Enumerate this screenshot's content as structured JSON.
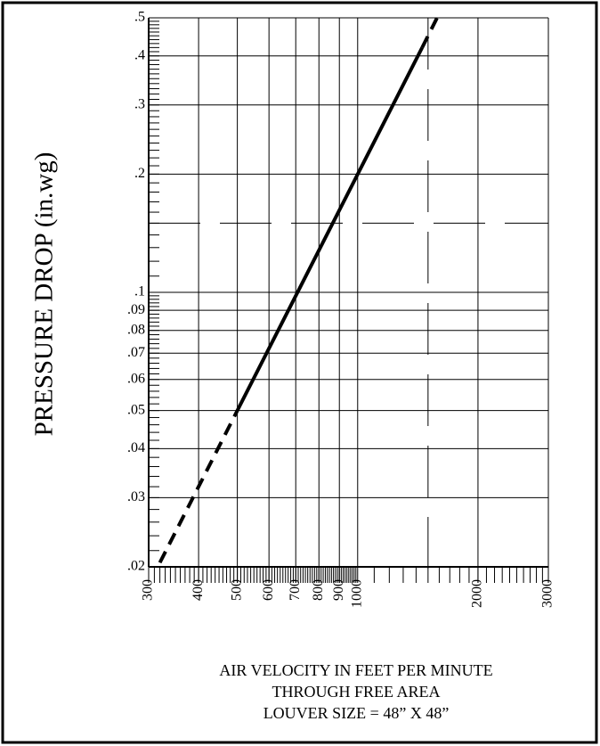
{
  "chart_data": {
    "type": "line",
    "y_label": "PRESSURE DROP (in.wg)",
    "x_label_lines": [
      "AIR VELOCITY IN FEET PER MINUTE",
      "THROUGH FREE AREA",
      "LOUVER SIZE = 48” X 48”"
    ],
    "log_x": true,
    "log_y": true,
    "grid": true,
    "xlim": [
      300,
      3000
    ],
    "ylim": [
      0.02,
      0.5
    ],
    "xticks": [
      300,
      400,
      500,
      600,
      700,
      800,
      900,
      1000,
      2000,
      3000
    ],
    "yticks": [
      {
        "value": 0.5,
        "label": ".5"
      },
      {
        "value": 0.4,
        "label": ".4"
      },
      {
        "value": 0.3,
        "label": ".3"
      },
      {
        "value": 0.2,
        "label": ".2"
      },
      {
        "value": 0.1,
        "label": ".1"
      },
      {
        "value": 0.09,
        "label": ".09"
      },
      {
        "value": 0.08,
        "label": ".08"
      },
      {
        "value": 0.07,
        "label": ".07"
      },
      {
        "value": 0.06,
        "label": ".06"
      },
      {
        "value": 0.05,
        "label": ".05"
      },
      {
        "value": 0.04,
        "label": ".04"
      },
      {
        "value": 0.03,
        "label": ".03"
      },
      {
        "value": 0.02,
        "label": ".02"
      }
    ],
    "dashed_grid": {
      "x": [
        1500
      ],
      "y": [
        0.15
      ]
    },
    "x_minor": [
      {
        "from": 300,
        "to": 1000,
        "step": 10
      },
      {
        "from": 1000,
        "to": 3000,
        "step": 100
      }
    ],
    "y_minor": [
      {
        "from": 0.02,
        "to": 0.1,
        "step": 0.002
      },
      {
        "from": 0.1,
        "to": 0.5,
        "step": 0.01
      }
    ],
    "series": [
      {
        "color": "#000000",
        "dashed": true,
        "x": [
          320,
          500
        ],
        "values": [
          0.0205,
          0.05
        ]
      },
      {
        "color": "#000000",
        "dashed": false,
        "x": [
          500,
          1450
        ],
        "values": [
          0.05,
          0.42
        ]
      },
      {
        "color": "#000000",
        "dashed": true,
        "x": [
          1450,
          1580
        ],
        "values": [
          0.42,
          0.5
        ]
      }
    ]
  }
}
